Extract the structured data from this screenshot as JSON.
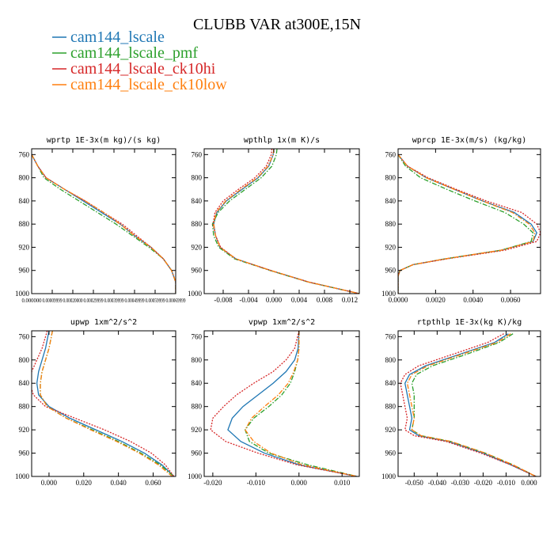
{
  "figure": {
    "title": "CLUBB VAR at300E,15N"
  },
  "legend": [
    {
      "name": "cam144_lscale",
      "color": "#1f77b4",
      "dash": "solid"
    },
    {
      "name": "cam144_lscale_pmf",
      "color": "#2ca02c",
      "dash": "dashdot"
    },
    {
      "name": "cam144_lscale_ck10hi",
      "color": "#d62728",
      "dash": "dotted"
    },
    {
      "name": "cam144_lscale_ck10low",
      "color": "#ff7f0e",
      "dash": "dashdot"
    }
  ],
  "chart_data": [
    {
      "type": "line",
      "title": "wprtp  1E-3x(m kg)/(s kg)",
      "xlim": [
        0.0,
        0.0007
      ],
      "ylim": [
        1000,
        750
      ],
      "y_axis": "pressure, reversed",
      "x_ticks": [
        0.0,
        0.0001,
        0.0002,
        0.0003,
        0.0004,
        0.0005,
        0.0006,
        0.0007
      ],
      "x_tick_labels": [
        "0.000000",
        "0.00009999",
        "0.00020000",
        "0.00029999",
        "0.00039999",
        "0.00049999",
        "0.00059999",
        "0.00069999"
      ],
      "y_ticks": [
        760,
        800,
        840,
        880,
        920,
        960,
        1000
      ],
      "y": [
        760,
        780,
        800,
        820,
        840,
        860,
        880,
        900,
        920,
        940,
        960,
        980,
        1000
      ],
      "series": [
        {
          "name": "cam144_lscale",
          "x": [
            0.0,
            3e-05,
            7e-05,
            0.00016,
            0.00025,
            0.00034,
            0.00043,
            0.0005,
            0.00058,
            0.00064,
            0.00068,
            0.0007,
            0.0007
          ]
        },
        {
          "name": "cam144_lscale_pmf",
          "x": [
            0.0,
            3e-05,
            6e-05,
            0.00014,
            0.00023,
            0.00032,
            0.00041,
            0.00049,
            0.00057,
            0.00064,
            0.00068,
            0.0007,
            0.0007
          ]
        },
        {
          "name": "cam144_lscale_ck10hi",
          "x": [
            0.0,
            3e-05,
            7e-05,
            0.00016,
            0.00026,
            0.00035,
            0.00044,
            0.00051,
            0.00058,
            0.00064,
            0.00068,
            0.0007,
            0.0007
          ]
        },
        {
          "name": "cam144_lscale_ck10low",
          "x": [
            0.0,
            3e-05,
            7e-05,
            0.00016,
            0.00026,
            0.00035,
            0.00043,
            0.0005,
            0.00058,
            0.00064,
            0.00068,
            0.0007,
            0.0007
          ]
        }
      ]
    },
    {
      "type": "line",
      "title": "wpthlp  1x(m K)/s",
      "xlim": [
        -0.011,
        0.0135
      ],
      "ylim": [
        1000,
        750
      ],
      "y_axis": "pressure, reversed",
      "x_ticks": [
        -0.008,
        -0.004,
        0.0,
        0.004,
        0.008,
        0.012
      ],
      "x_tick_labels": [
        "-0.008",
        "-0.004",
        "0.000",
        "0.004",
        "0.008",
        "0.012"
      ],
      "y_ticks": [
        760,
        800,
        840,
        880,
        920,
        960,
        1000
      ],
      "y": [
        750,
        760,
        780,
        800,
        820,
        840,
        860,
        880,
        900,
        920,
        940,
        960,
        980,
        1000
      ],
      "series": [
        {
          "name": "cam144_lscale",
          "x": [
            0.0,
            -0.0001,
            -0.0008,
            -0.0025,
            -0.005,
            -0.0075,
            -0.009,
            -0.0095,
            -0.0092,
            -0.0085,
            -0.006,
            -0.0005,
            0.0055,
            0.0135
          ]
        },
        {
          "name": "cam144_lscale_pmf",
          "x": [
            0.0005,
            0.0004,
            -0.0003,
            -0.002,
            -0.0045,
            -0.007,
            -0.0088,
            -0.0097,
            -0.0095,
            -0.0087,
            -0.0062,
            -0.0006,
            0.0054,
            0.0135
          ]
        },
        {
          "name": "cam144_lscale_ck10hi",
          "x": [
            -0.0003,
            -0.0004,
            -0.0012,
            -0.003,
            -0.0056,
            -0.008,
            -0.0093,
            -0.0096,
            -0.0092,
            -0.0084,
            -0.006,
            -0.0005,
            0.0055,
            0.0135
          ]
        },
        {
          "name": "cam144_lscale_ck10low",
          "x": [
            0.0,
            -0.0001,
            -0.0009,
            -0.0026,
            -0.0052,
            -0.0076,
            -0.0091,
            -0.0095,
            -0.0092,
            -0.0085,
            -0.006,
            -0.0005,
            0.0055,
            0.0135
          ]
        }
      ]
    },
    {
      "type": "line",
      "title": "wprcp  1E-3x(m/s) (kg/kg)",
      "xlim": [
        0.0,
        0.0076
      ],
      "ylim": [
        1000,
        750
      ],
      "y_axis": "pressure, reversed",
      "x_ticks": [
        0.0,
        0.002,
        0.004,
        0.006
      ],
      "x_tick_labels": [
        "0.0000",
        "0.0020",
        "0.0040",
        "0.0060"
      ],
      "y_ticks": [
        760,
        800,
        840,
        880,
        920,
        960,
        1000
      ],
      "y": [
        760,
        780,
        800,
        820,
        840,
        860,
        880,
        895,
        910,
        925,
        940,
        950,
        960,
        970,
        1000
      ],
      "series": [
        {
          "name": "cam144_lscale",
          "x": [
            0.0,
            0.0005,
            0.0015,
            0.003,
            0.0045,
            0.0062,
            0.0071,
            0.0074,
            0.0072,
            0.0055,
            0.0025,
            0.0008,
            0.0001,
            0.0,
            0.0
          ]
        },
        {
          "name": "cam144_lscale_pmf",
          "x": [
            0.0,
            0.0004,
            0.0012,
            0.0026,
            0.0041,
            0.0057,
            0.0067,
            0.0072,
            0.0071,
            0.0055,
            0.0025,
            0.0008,
            0.0001,
            0.0,
            0.0
          ]
        },
        {
          "name": "cam144_lscale_ck10hi",
          "x": [
            0.0,
            0.0005,
            0.0016,
            0.0031,
            0.0047,
            0.0066,
            0.0074,
            0.0076,
            0.0074,
            0.0057,
            0.0026,
            0.0008,
            0.0001,
            0.0,
            0.0
          ]
        },
        {
          "name": "cam144_lscale_ck10low",
          "x": [
            0.0,
            0.0005,
            0.0015,
            0.003,
            0.0045,
            0.0061,
            0.007,
            0.0073,
            0.0072,
            0.0055,
            0.0025,
            0.0008,
            0.0001,
            0.0,
            0.0
          ]
        }
      ]
    },
    {
      "type": "line",
      "title": "upwp  1xm^2/s^2",
      "xlim": [
        -0.01,
        0.073
      ],
      "ylim": [
        1000,
        750
      ],
      "y_axis": "pressure, reversed",
      "x_ticks": [
        0.0,
        0.02,
        0.04,
        0.06
      ],
      "x_tick_labels": [
        "0.000",
        "0.020",
        "0.040",
        "0.060"
      ],
      "y_ticks": [
        760,
        800,
        840,
        880,
        920,
        960,
        1000
      ],
      "y": [
        750,
        780,
        800,
        820,
        840,
        860,
        880,
        900,
        920,
        940,
        960,
        980,
        1000
      ],
      "series": [
        {
          "name": "cam144_lscale",
          "x": [
            0.0,
            -0.002,
            -0.004,
            -0.006,
            -0.007,
            -0.006,
            0.0,
            0.012,
            0.027,
            0.042,
            0.055,
            0.065,
            0.072
          ]
        },
        {
          "name": "cam144_lscale_pmf",
          "x": [
            0.002,
            0.0,
            -0.002,
            -0.004,
            -0.005,
            -0.005,
            -0.001,
            0.01,
            0.025,
            0.04,
            0.053,
            0.064,
            0.072
          ]
        },
        {
          "name": "cam144_lscale_ck10hi",
          "x": [
            -0.001,
            -0.004,
            -0.007,
            -0.01,
            -0.011,
            -0.009,
            -0.002,
            0.015,
            0.032,
            0.047,
            0.059,
            0.067,
            0.072
          ]
        },
        {
          "name": "cam144_lscale_ck10low",
          "x": [
            0.002,
            0.0,
            -0.002,
            -0.004,
            -0.005,
            -0.005,
            -0.001,
            0.01,
            0.024,
            0.039,
            0.052,
            0.063,
            0.071
          ]
        }
      ]
    },
    {
      "type": "line",
      "title": "vpwp  1xm^2/s^2",
      "xlim": [
        -0.022,
        0.014
      ],
      "ylim": [
        1000,
        750
      ],
      "y_axis": "pressure, reversed",
      "x_ticks": [
        -0.02,
        -0.01,
        0.0,
        0.01
      ],
      "x_tick_labels": [
        "-0.020",
        "-0.010",
        "0.000",
        "0.010"
      ],
      "y_ticks": [
        760,
        800,
        840,
        880,
        920,
        960,
        1000
      ],
      "y": [
        750,
        780,
        800,
        820,
        840,
        860,
        880,
        900,
        920,
        940,
        960,
        980,
        1000
      ],
      "series": [
        {
          "name": "cam144_lscale",
          "x": [
            0.0,
            -0.0002,
            -0.001,
            -0.003,
            -0.006,
            -0.0095,
            -0.013,
            -0.0155,
            -0.0165,
            -0.0135,
            -0.008,
            0.0,
            0.0135
          ]
        },
        {
          "name": "cam144_lscale_pmf",
          "x": [
            0.0,
            0.0,
            -0.0003,
            -0.001,
            -0.002,
            -0.004,
            -0.007,
            -0.0105,
            -0.0125,
            -0.0115,
            -0.007,
            0.002,
            0.0135
          ]
        },
        {
          "name": "cam144_lscale_ck10hi",
          "x": [
            0.0,
            -0.001,
            -0.003,
            -0.006,
            -0.0105,
            -0.0145,
            -0.0175,
            -0.02,
            -0.0205,
            -0.017,
            -0.0095,
            -0.0005,
            0.0135
          ]
        },
        {
          "name": "cam144_lscale_ck10low",
          "x": [
            0.0,
            0.0,
            -0.0003,
            -0.0012,
            -0.0025,
            -0.0048,
            -0.008,
            -0.011,
            -0.0125,
            -0.0105,
            -0.0065,
            0.0008,
            0.0135
          ]
        }
      ]
    },
    {
      "type": "line",
      "title": "rtpthlp  1E-3x(kg K)/kg",
      "xlim": [
        -0.057,
        0.005
      ],
      "ylim": [
        1000,
        750
      ],
      "y_axis": "pressure, reversed",
      "x_ticks": [
        -0.05,
        -0.04,
        -0.03,
        -0.02,
        -0.01,
        0.0
      ],
      "x_tick_labels": [
        "-0.050",
        "-0.040",
        "-0.030",
        "-0.020",
        "-0.010",
        "0.000"
      ],
      "y_ticks": [
        760,
        800,
        840,
        880,
        920,
        960,
        1000
      ],
      "y": [
        755,
        770,
        790,
        810,
        825,
        840,
        860,
        880,
        900,
        920,
        930,
        940,
        960,
        980,
        1000
      ],
      "series": [
        {
          "name": "cam144_lscale",
          "x": [
            -0.009,
            -0.015,
            -0.03,
            -0.045,
            -0.052,
            -0.054,
            -0.053,
            -0.052,
            -0.051,
            -0.052,
            -0.048,
            -0.035,
            -0.02,
            -0.008,
            0.003
          ]
        },
        {
          "name": "cam144_lscale_pmf",
          "x": [
            -0.007,
            -0.013,
            -0.027,
            -0.042,
            -0.049,
            -0.051,
            -0.05,
            -0.05,
            -0.05,
            -0.051,
            -0.047,
            -0.034,
            -0.019,
            -0.007,
            0.003
          ]
        },
        {
          "name": "cam144_lscale_ck10hi",
          "x": [
            -0.011,
            -0.018,
            -0.033,
            -0.048,
            -0.054,
            -0.056,
            -0.055,
            -0.054,
            -0.053,
            -0.054,
            -0.05,
            -0.036,
            -0.021,
            -0.008,
            0.003
          ]
        },
        {
          "name": "cam144_lscale_ck10low",
          "x": [
            -0.008,
            -0.014,
            -0.029,
            -0.044,
            -0.051,
            -0.053,
            -0.052,
            -0.051,
            -0.05,
            -0.051,
            -0.047,
            -0.034,
            -0.019,
            -0.007,
            0.003
          ]
        }
      ]
    }
  ]
}
